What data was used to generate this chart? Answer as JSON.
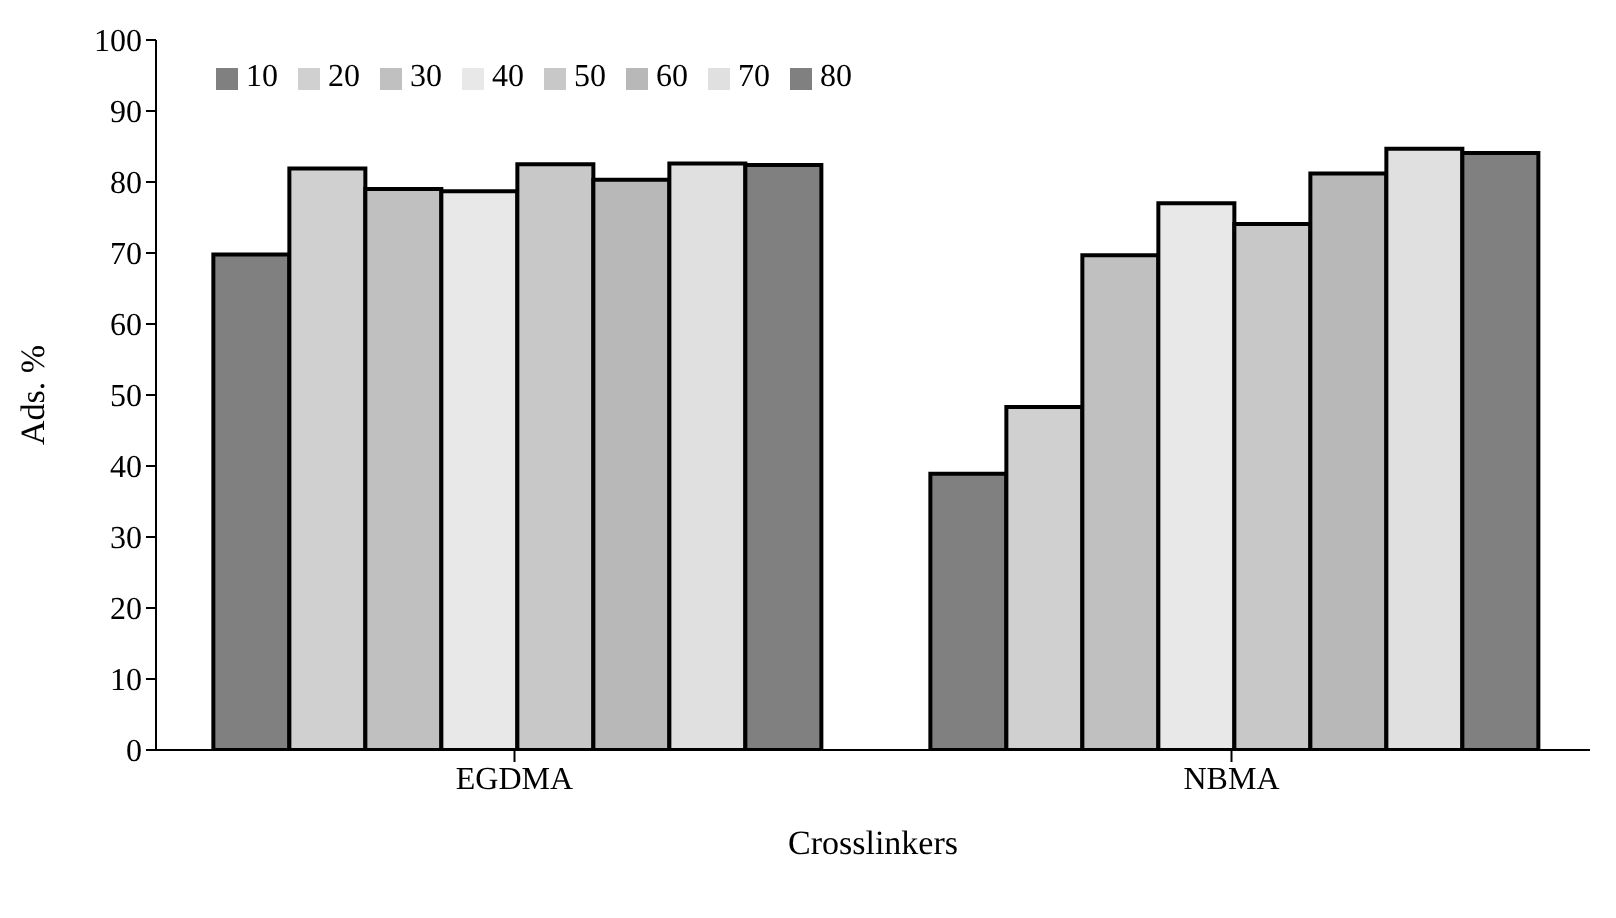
{
  "chart_data": {
    "type": "bar",
    "xlabel": "Crosslinkers",
    "ylabel": "Ads. %",
    "categories": [
      "EGDMA",
      "NBMA"
    ],
    "series": [
      {
        "name": "10",
        "color": "#808080",
        "values": [
          69.8,
          38.9
        ]
      },
      {
        "name": "20",
        "color": "#d0d0d0",
        "values": [
          81.9,
          48.3
        ]
      },
      {
        "name": "30",
        "color": "#c0c0c0",
        "values": [
          79.0,
          69.7
        ]
      },
      {
        "name": "40",
        "color": "#e8e8e8",
        "values": [
          78.7,
          77.0
        ]
      },
      {
        "name": "50",
        "color": "#c8c8c8",
        "values": [
          82.5,
          74.1
        ]
      },
      {
        "name": "60",
        "color": "#b8b8b8",
        "values": [
          80.3,
          81.2
        ]
      },
      {
        "name": "70",
        "color": "#e0e0e0",
        "values": [
          82.6,
          84.7
        ]
      },
      {
        "name": "80",
        "color": "#808080",
        "values": [
          82.4,
          84.1
        ]
      }
    ],
    "ylim": [
      0,
      100
    ],
    "yticks": [
      0,
      10,
      20,
      30,
      40,
      50,
      60,
      70,
      80,
      90,
      100
    ],
    "grid": false,
    "legend": "top left"
  }
}
